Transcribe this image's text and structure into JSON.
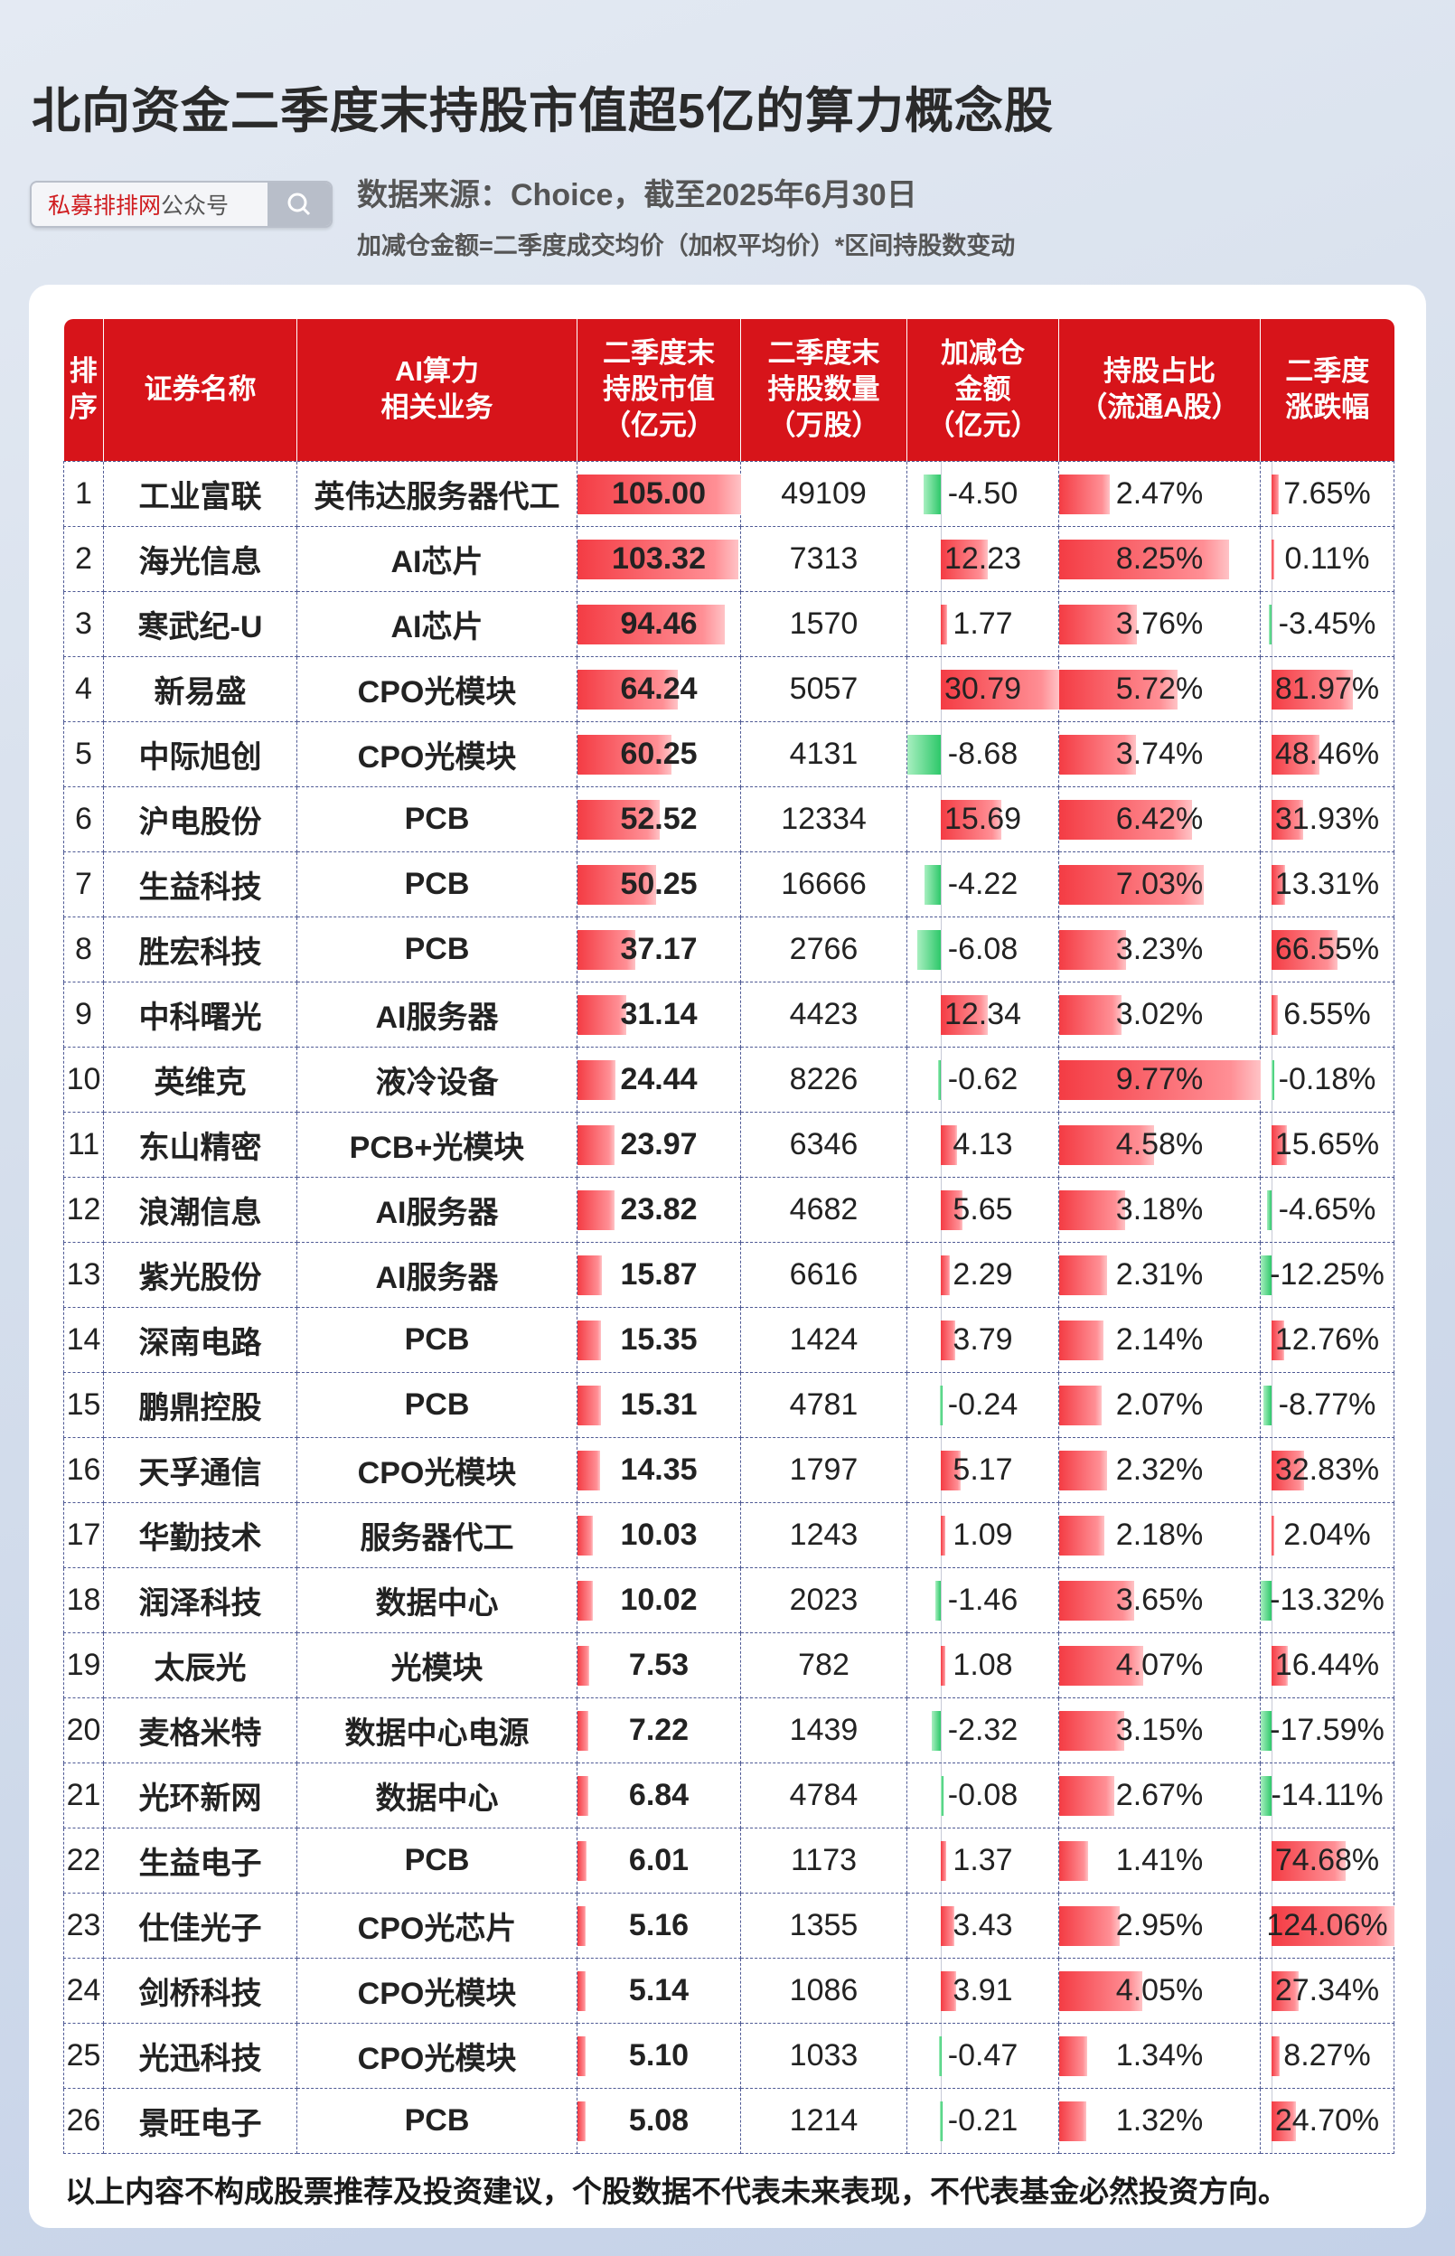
{
  "title": "北向资金二季度末持股市值超5亿的算力概念股",
  "search": {
    "brand": "私募排排网",
    "suffix": "公众号",
    "icon": "search-icon"
  },
  "source": "数据来源：Choice，截至2025年6月30日",
  "formula": "加减仓金额=二季度成交均价（加权平均价）*区间持股数变动",
  "colors": {
    "header": "#d7141a",
    "positive_bar": "#f43c44",
    "negative_bar": "#2ec86a"
  },
  "headers": [
    "排序",
    "证券名称",
    "AI算力相关业务",
    "二季度末持股市值（亿元）",
    "二季度末持股数量（万股）",
    "加减仓金额（亿元）",
    "持股占比（流通A股）",
    "二季度涨跌幅"
  ],
  "headers_lines": [
    [
      "排",
      "序"
    ],
    [
      "证券名称"
    ],
    [
      "AI算力",
      "相关业务"
    ],
    [
      "二季度末",
      "持股市值",
      "（亿元）"
    ],
    [
      "二季度末",
      "持股数量",
      "（万股）"
    ],
    [
      "加减仓",
      "金额",
      "（亿元）"
    ],
    [
      "持股占比",
      "（流通A股）"
    ],
    [
      "二季度",
      "涨跌幅"
    ]
  ],
  "rows": [
    {
      "rank": "1",
      "name": "工业富联",
      "biz": "英伟达服务器代工",
      "mv": "105.00",
      "qty": "49109",
      "chg": "-4.50",
      "ratio": "2.47%",
      "pct": "7.65%"
    },
    {
      "rank": "2",
      "name": "海光信息",
      "biz": "AI芯片",
      "mv": "103.32",
      "qty": "7313",
      "chg": "12.23",
      "ratio": "8.25%",
      "pct": "0.11%"
    },
    {
      "rank": "3",
      "name": "寒武纪-U",
      "biz": "AI芯片",
      "mv": "94.46",
      "qty": "1570",
      "chg": "1.77",
      "ratio": "3.76%",
      "pct": "-3.45%"
    },
    {
      "rank": "4",
      "name": "新易盛",
      "biz": "CPO光模块",
      "mv": "64.24",
      "qty": "5057",
      "chg": "30.79",
      "ratio": "5.72%",
      "pct": "81.97%"
    },
    {
      "rank": "5",
      "name": "中际旭创",
      "biz": "CPO光模块",
      "mv": "60.25",
      "qty": "4131",
      "chg": "-8.68",
      "ratio": "3.74%",
      "pct": "48.46%"
    },
    {
      "rank": "6",
      "name": "沪电股份",
      "biz": "PCB",
      "mv": "52.52",
      "qty": "12334",
      "chg": "15.69",
      "ratio": "6.42%",
      "pct": "31.93%"
    },
    {
      "rank": "7",
      "name": "生益科技",
      "biz": "PCB",
      "mv": "50.25",
      "qty": "16666",
      "chg": "-4.22",
      "ratio": "7.03%",
      "pct": "13.31%"
    },
    {
      "rank": "8",
      "name": "胜宏科技",
      "biz": "PCB",
      "mv": "37.17",
      "qty": "2766",
      "chg": "-6.08",
      "ratio": "3.23%",
      "pct": "66.55%"
    },
    {
      "rank": "9",
      "name": "中科曙光",
      "biz": "AI服务器",
      "mv": "31.14",
      "qty": "4423",
      "chg": "12.34",
      "ratio": "3.02%",
      "pct": "6.55%"
    },
    {
      "rank": "10",
      "name": "英维克",
      "biz": "液冷设备",
      "mv": "24.44",
      "qty": "8226",
      "chg": "-0.62",
      "ratio": "9.77%",
      "pct": "-0.18%"
    },
    {
      "rank": "11",
      "name": "东山精密",
      "biz": "PCB+光模块",
      "mv": "23.97",
      "qty": "6346",
      "chg": "4.13",
      "ratio": "4.58%",
      "pct": "15.65%"
    },
    {
      "rank": "12",
      "name": "浪潮信息",
      "biz": "AI服务器",
      "mv": "23.82",
      "qty": "4682",
      "chg": "5.65",
      "ratio": "3.18%",
      "pct": "-4.65%"
    },
    {
      "rank": "13",
      "name": "紫光股份",
      "biz": "AI服务器",
      "mv": "15.87",
      "qty": "6616",
      "chg": "2.29",
      "ratio": "2.31%",
      "pct": "-12.25%"
    },
    {
      "rank": "14",
      "name": "深南电路",
      "biz": "PCB",
      "mv": "15.35",
      "qty": "1424",
      "chg": "3.79",
      "ratio": "2.14%",
      "pct": "12.76%"
    },
    {
      "rank": "15",
      "name": "鹏鼎控股",
      "biz": "PCB",
      "mv": "15.31",
      "qty": "4781",
      "chg": "-0.24",
      "ratio": "2.07%",
      "pct": "-8.77%"
    },
    {
      "rank": "16",
      "name": "天孚通信",
      "biz": "CPO光模块",
      "mv": "14.35",
      "qty": "1797",
      "chg": "5.17",
      "ratio": "2.32%",
      "pct": "32.83%"
    },
    {
      "rank": "17",
      "name": "华勤技术",
      "biz": "服务器代工",
      "mv": "10.03",
      "qty": "1243",
      "chg": "1.09",
      "ratio": "2.18%",
      "pct": "2.04%"
    },
    {
      "rank": "18",
      "name": "润泽科技",
      "biz": "数据中心",
      "mv": "10.02",
      "qty": "2023",
      "chg": "-1.46",
      "ratio": "3.65%",
      "pct": "-13.32%"
    },
    {
      "rank": "19",
      "name": "太辰光",
      "biz": "光模块",
      "mv": "7.53",
      "qty": "782",
      "chg": "1.08",
      "ratio": "4.07%",
      "pct": "16.44%"
    },
    {
      "rank": "20",
      "name": "麦格米特",
      "biz": "数据中心电源",
      "mv": "7.22",
      "qty": "1439",
      "chg": "-2.32",
      "ratio": "3.15%",
      "pct": "-17.59%"
    },
    {
      "rank": "21",
      "name": "光环新网",
      "biz": "数据中心",
      "mv": "6.84",
      "qty": "4784",
      "chg": "-0.08",
      "ratio": "2.67%",
      "pct": "-14.11%"
    },
    {
      "rank": "22",
      "name": "生益电子",
      "biz": "PCB",
      "mv": "6.01",
      "qty": "1173",
      "chg": "1.37",
      "ratio": "1.41%",
      "pct": "74.68%"
    },
    {
      "rank": "23",
      "name": "仕佳光子",
      "biz": "CPO光芯片",
      "mv": "5.16",
      "qty": "1355",
      "chg": "3.43",
      "ratio": "2.95%",
      "pct": "124.06%"
    },
    {
      "rank": "24",
      "name": "剑桥科技",
      "biz": "CPO光模块",
      "mv": "5.14",
      "qty": "1086",
      "chg": "3.91",
      "ratio": "4.05%",
      "pct": "27.34%"
    },
    {
      "rank": "25",
      "name": "光迅科技",
      "biz": "CPO光模块",
      "mv": "5.10",
      "qty": "1033",
      "chg": "-0.47",
      "ratio": "1.34%",
      "pct": "8.27%"
    },
    {
      "rank": "26",
      "name": "景旺电子",
      "biz": "PCB",
      "mv": "5.08",
      "qty": "1214",
      "chg": "-0.21",
      "ratio": "1.32%",
      "pct": "24.70%"
    }
  ],
  "footer": "以上内容不构成股票推荐及投资建议，个股数据不代表未来表现，不代表基金必然投资方向。"
}
